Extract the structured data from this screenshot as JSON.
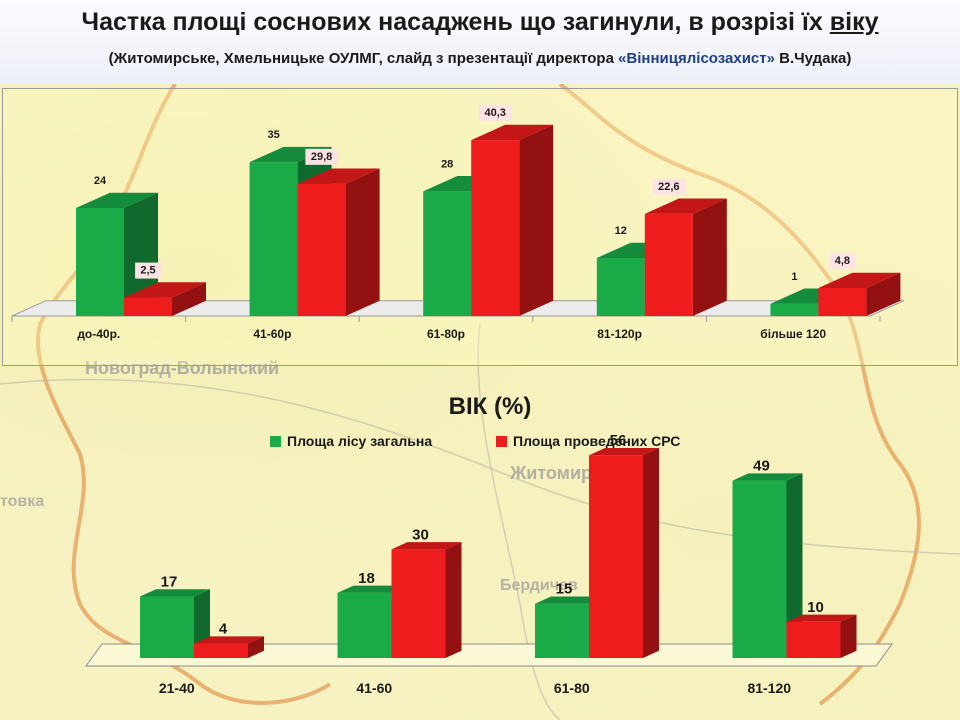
{
  "header": {
    "title_main": "Частка площі соснових насаджень що загинули,  в розрізі їх ",
    "title_underlined": "віку",
    "subtitle_part1": "(Житомирське, Хмельницьке ОУЛМГ, слайд з презентації директора ",
    "subtitle_org": "«Вінницялісозахист»",
    "subtitle_part2": "  В.Чудака)"
  },
  "colors": {
    "green": "#1aab48",
    "red": "#ee1c1c",
    "map_line": "#e1873a"
  },
  "map_labels": {
    "novograd": "Новоград-Волынский",
    "zhytomyr": "Житомир",
    "berdychiv": "Бердичев",
    "left_edge": "товка"
  },
  "chart_data": [
    {
      "type": "bar",
      "title": "",
      "categories": [
        "до-40р.",
        "41-60р",
        "61-80р",
        "81-120р",
        "більше 120"
      ],
      "series": [
        {
          "values": [
            24,
            35,
            28,
            12,
            1
          ],
          "labels": [
            "24",
            "35",
            "28",
            "12",
            "1"
          ],
          "color": "#1aab48"
        },
        {
          "values": [
            2.5,
            29.8,
            40.3,
            22.6,
            4.8
          ],
          "labels": [
            "2,5",
            "29,8",
            "40,3",
            "22,6",
            "4,8"
          ],
          "color": "#ee1c1c"
        }
      ],
      "ylim": [
        0,
        42
      ],
      "grid": false
    },
    {
      "type": "bar",
      "title": "ВІК (%)",
      "categories": [
        "21-40",
        "41-60",
        "61-80",
        "81-120"
      ],
      "series": [
        {
          "name": "Площа лісу загальна",
          "values": [
            17,
            18,
            15,
            49
          ],
          "labels": [
            "17",
            "18",
            "15",
            "49"
          ],
          "color": "#1aab48"
        },
        {
          "name": "Площа проведених СРС",
          "values": [
            4,
            30,
            56,
            10
          ],
          "labels": [
            "4",
            "30",
            "56",
            "10"
          ],
          "color": "#ee1c1c"
        }
      ],
      "ylim": [
        0,
        58
      ],
      "legend": "top-center",
      "grid": false
    }
  ]
}
